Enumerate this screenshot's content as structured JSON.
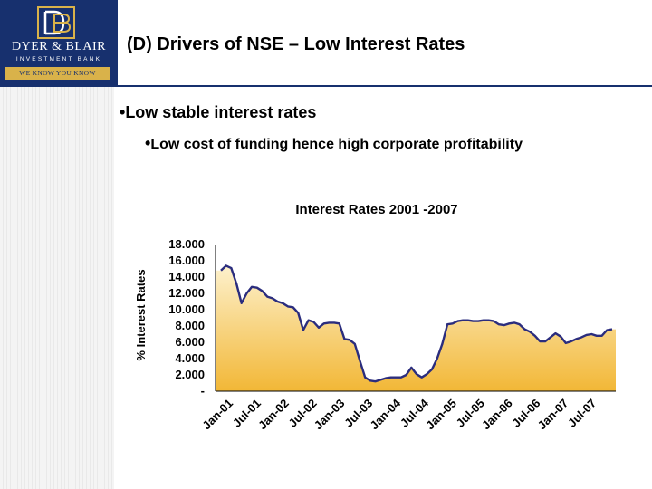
{
  "header": {
    "logo_name": "DYER & BLAIR",
    "logo_sub": "INVESTMENT BANK",
    "logo_tagline": "WE KNOW YOU KNOW",
    "title": "(D) Drivers of NSE – Low Interest Rates"
  },
  "bullets": {
    "level1": "Low stable interest rates",
    "level2": "Low cost of funding hence high corporate profitability"
  },
  "chart_data": {
    "type": "area",
    "title": "Interest Rates 2001 -2007",
    "xlabel": "",
    "ylabel": "% Interest Rates",
    "ylim": [
      0,
      18
    ],
    "y_ticks": [
      "-",
      "2.000",
      "4.000",
      "6.000",
      "8.000",
      "10.000",
      "12.000",
      "14.000",
      "16.000",
      "18.000"
    ],
    "x_ticks": [
      "Jan-01",
      "Jul-01",
      "Jan-02",
      "Jul-02",
      "Jan-03",
      "Jul-03",
      "Jan-04",
      "Jul-04",
      "Jan-05",
      "Jul-05",
      "Jan-06",
      "Jul-06",
      "Jan-07",
      "Jul-07"
    ],
    "series": [
      {
        "values": [
          14.8,
          15.4,
          15.1,
          13.2,
          10.8,
          12.0,
          12.8,
          12.7,
          12.3,
          11.6,
          11.4,
          11.0,
          10.8,
          10.4,
          10.3,
          9.6,
          7.5,
          8.7,
          8.5,
          7.8,
          8.3,
          8.4,
          8.4,
          8.3,
          6.4,
          6.3,
          5.8,
          3.7,
          1.7,
          1.3,
          1.2,
          1.4,
          1.6,
          1.7,
          1.7,
          1.7,
          2.0,
          2.9,
          2.1,
          1.7,
          2.1,
          2.7,
          4.0,
          5.8,
          8.2,
          8.3,
          8.6,
          8.7,
          8.7,
          8.6,
          8.6,
          8.7,
          8.7,
          8.6,
          8.2,
          8.1,
          8.3,
          8.4,
          8.2,
          7.6,
          7.3,
          6.8,
          6.1,
          6.1,
          6.6,
          7.1,
          6.7,
          5.9,
          6.1,
          6.4,
          6.6,
          6.9,
          7.0,
          6.8,
          6.8,
          7.5,
          7.6
        ]
      }
    ],
    "line_color": "#2b2d7e",
    "fill_top_color": "#fffbe6",
    "fill_bottom_color": "#f2b736"
  }
}
